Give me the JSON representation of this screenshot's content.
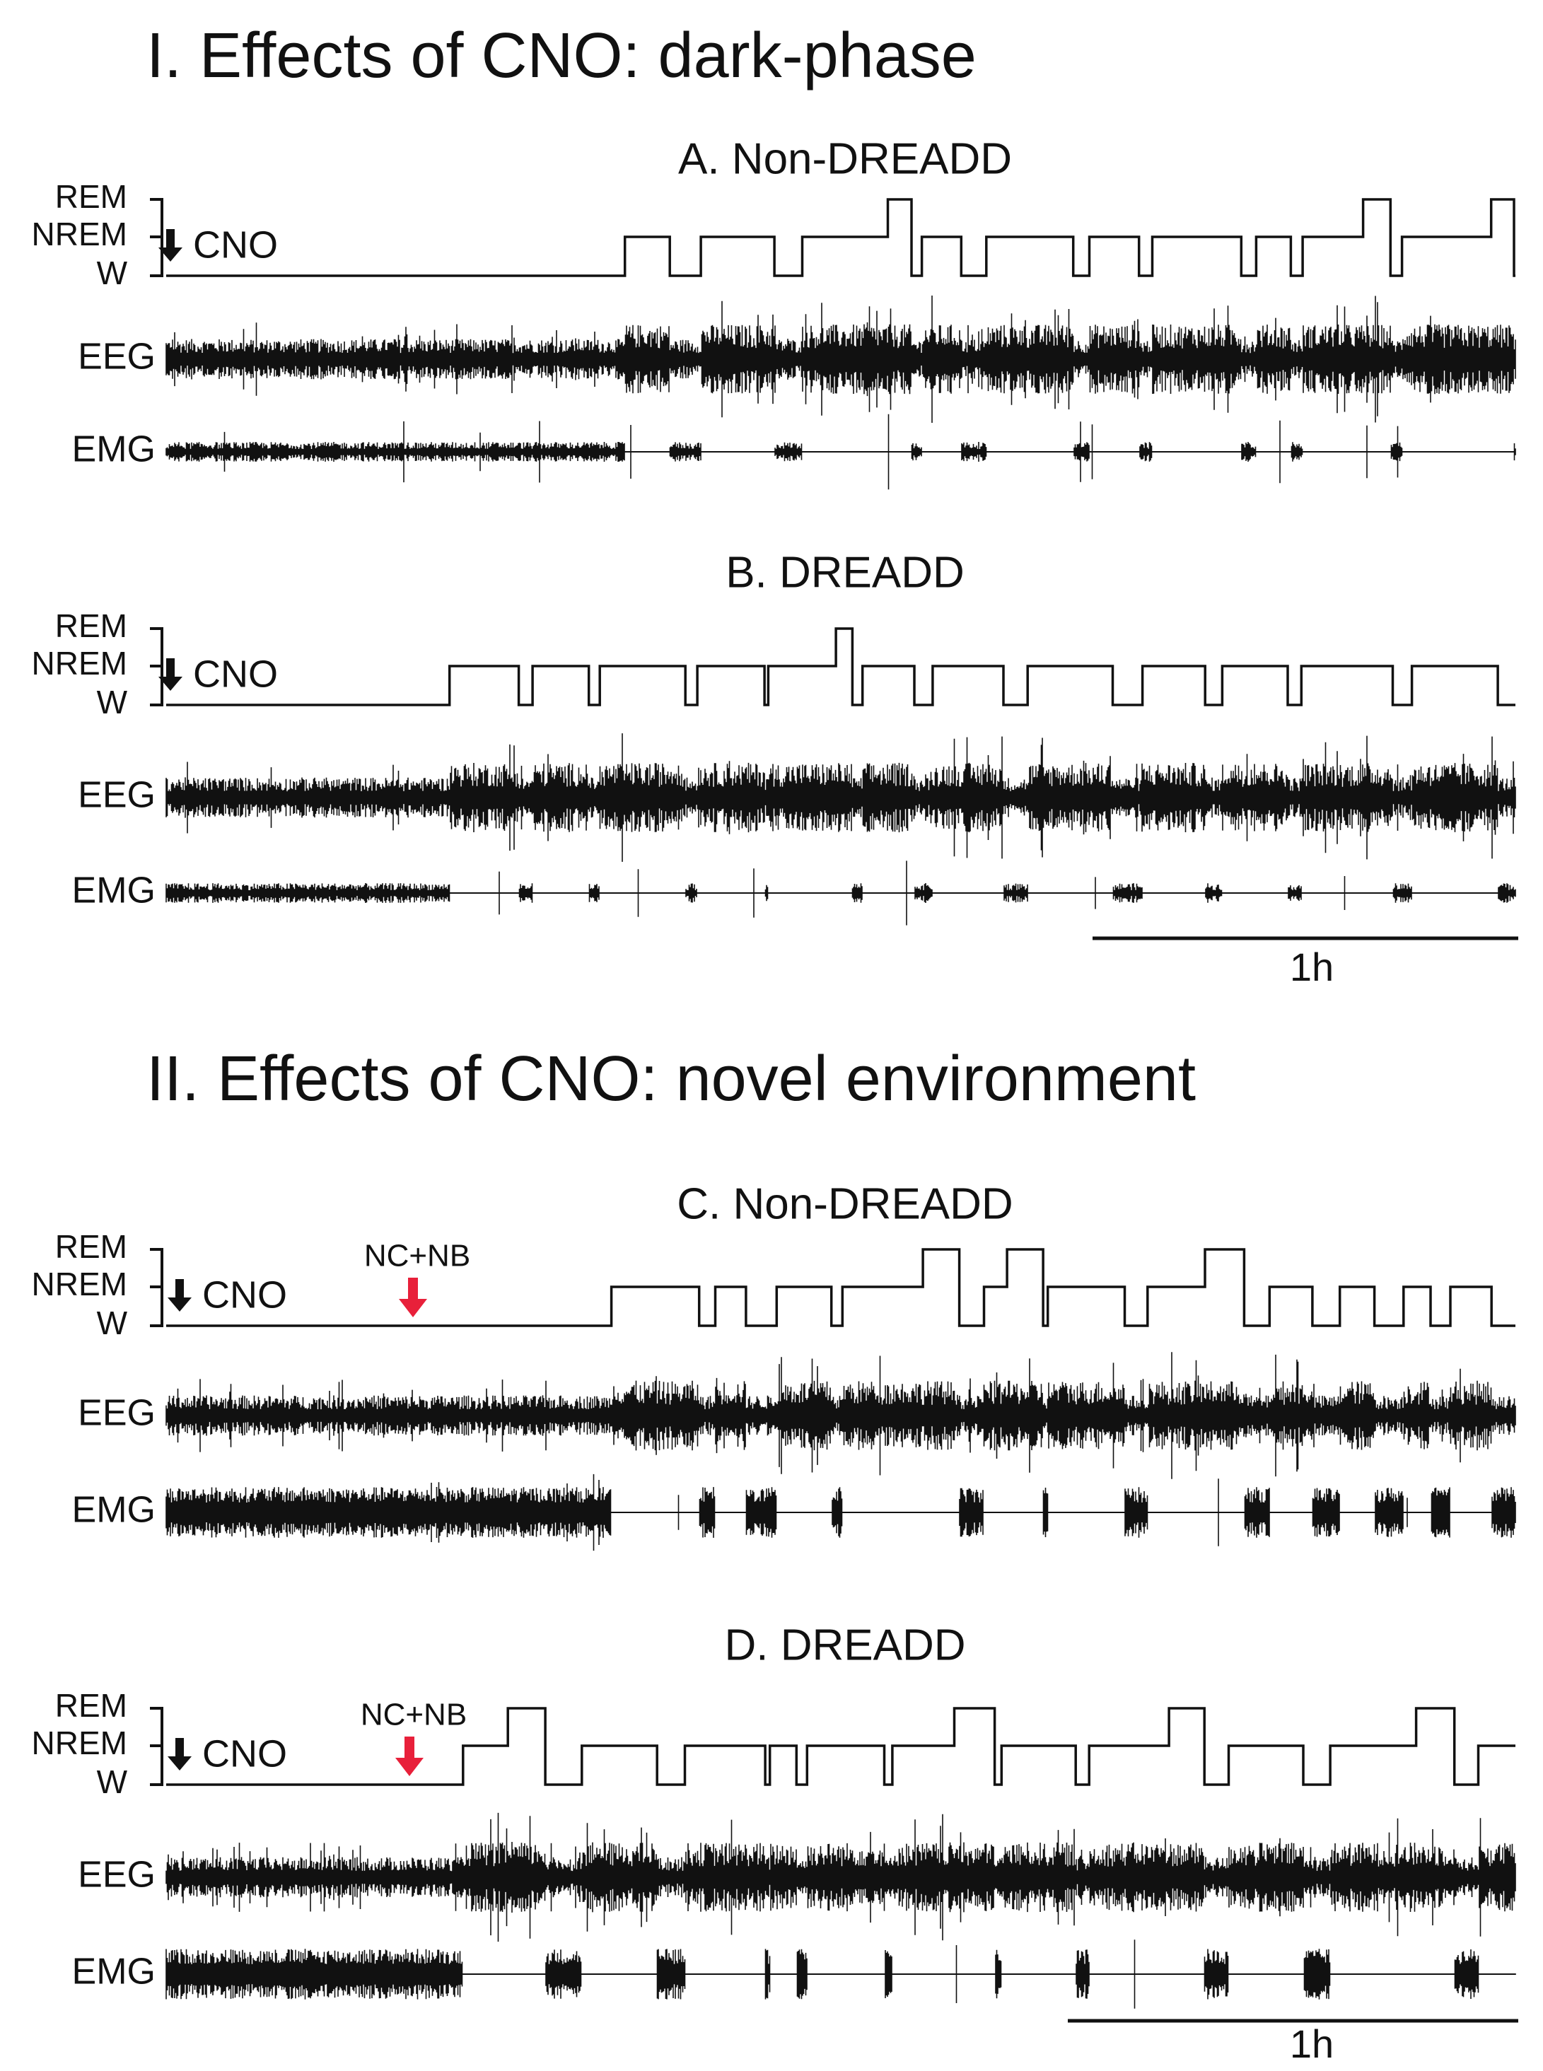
{
  "sections": [
    {
      "title": "I. Effects of CNO: dark-phase",
      "panels": [
        {
          "title": "A. Non-DREADD",
          "states": [
            "REM",
            "NREM",
            "W"
          ],
          "injection": "CNO",
          "signals": [
            "EEG",
            "EMG"
          ]
        },
        {
          "title": "B. DREADD",
          "states": [
            "REM",
            "NREM",
            "W"
          ],
          "injection": "CNO",
          "signals": [
            "EEG",
            "EMG"
          ]
        }
      ],
      "scale_bar": "1h"
    },
    {
      "title": "II. Effects of CNO: novel environment",
      "panels": [
        {
          "title": "C. Non-DREADD",
          "states": [
            "REM",
            "NREM",
            "W"
          ],
          "injection": "CNO",
          "stimulus": "NC+NB",
          "signals": [
            "EEG",
            "EMG"
          ]
        },
        {
          "title": "D. DREADD",
          "states": [
            "REM",
            "NREM",
            "W"
          ],
          "injection": "CNO",
          "stimulus": "NC+NB",
          "signals": [
            "EEG",
            "EMG"
          ]
        }
      ],
      "scale_bar": "1h"
    }
  ]
}
